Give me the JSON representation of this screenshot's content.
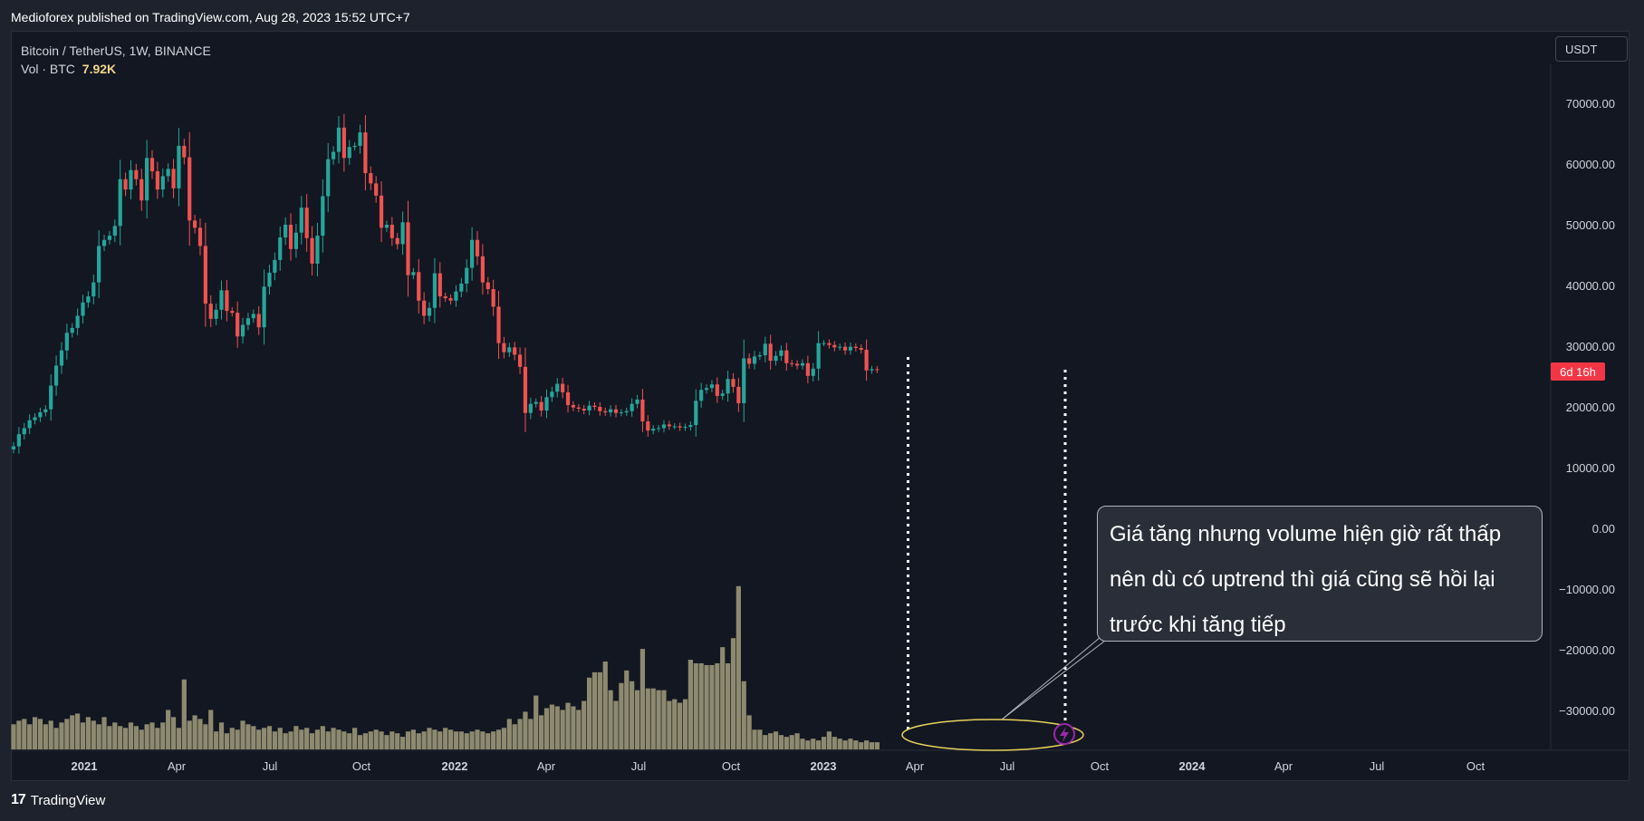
{
  "header": {
    "publisher": "Medioforex published on TradingView.com, Aug 28, 2023 15:52 UTC+7"
  },
  "legend": {
    "symbol": "Bitcoin / TetherUS, 1W, BINANCE",
    "vol_label": "Vol · BTC",
    "vol_value": "7.92K"
  },
  "toolbar": {
    "currency": "USDT"
  },
  "countdown": "6d 16h",
  "annotation": {
    "lines": [
      "Giá tăng nhưng volume hiện giờ rất thấp",
      "nên dù có uptrend thì giá cũng sẽ hồi lại",
      "trước khi tăng tiếp"
    ]
  },
  "footer": {
    "logo_mark": "17",
    "brand": "TradingView"
  },
  "colors": {
    "up": "#26a69a",
    "down": "#ef5350",
    "volume": "#8d8a6f",
    "background": "#131722",
    "frame": "#1e222d",
    "highlight": "#e6d15a",
    "alert": "#9c27b0"
  },
  "icons": {
    "alert": "lightning-icon",
    "logo": "tradingview-logo-icon"
  },
  "chart_data": {
    "type": "candlestick",
    "xlabels": [
      "2021",
      "Apr",
      "Jul",
      "Oct",
      "2022",
      "Apr",
      "Jul",
      "Oct",
      "2023",
      "Apr",
      "Jul",
      "Oct",
      "2024",
      "Apr",
      "Jul",
      "Oct"
    ],
    "yticks": [
      "70000.00",
      "60000.00",
      "50000.00",
      "40000.00",
      "30000.00",
      "20000.00",
      "10000.00",
      "0.00",
      "−10000.00",
      "−20000.00",
      "−30000.00"
    ],
    "ylim": [
      -37000,
      75000
    ],
    "candles_close": [
      13500,
      15500,
      16500,
      17800,
      18300,
      19100,
      19600,
      23500,
      26800,
      29300,
      32200,
      33000,
      35000,
      37200,
      38200,
      40500,
      46500,
      47500,
      48200,
      49800,
      57500,
      55800,
      59000,
      57500,
      54000,
      61000,
      58800,
      55800,
      58000,
      59200,
      56000,
      63000,
      61100,
      50700,
      49500,
      46500,
      37000,
      34500,
      36000,
      39200,
      35800,
      35500,
      31600,
      33500,
      34600,
      35300,
      33100,
      39800,
      42100,
      44200,
      47900,
      50000,
      46000,
      48700,
      52800,
      47800,
      43600,
      48200,
      54700,
      60800,
      62000,
      66000,
      61000,
      62800,
      63000,
      65200,
      58500,
      56800,
      54800,
      49500,
      50000,
      47800,
      46800,
      50400,
      41700,
      42200,
      37500,
      35000,
      36300,
      42000,
      38200,
      37900,
      37500,
      39000,
      40300,
      42900,
      47500,
      44800,
      40500,
      39400,
      36500,
      30500,
      29000,
      29800,
      28600,
      26600,
      19000,
      20500,
      20800,
      19400,
      21600,
      22500,
      23800,
      22400,
      20300,
      19900,
      19700,
      19400,
      20200,
      20000,
      19300,
      19100,
      19600,
      19000,
      19100,
      19300,
      20500,
      21200,
      17600,
      16100,
      16400,
      16500,
      17100,
      16800,
      16800,
      16600,
      16700,
      17000,
      21000,
      22800,
      23100,
      23700,
      21800,
      22200,
      24600,
      23300,
      20600,
      28000,
      27100,
      28300,
      28500,
      30400,
      27600,
      28400,
      29300,
      27200,
      27100,
      26800,
      27200,
      25100,
      26300,
      30500,
      30500,
      30200,
      29800,
      29900,
      29300,
      29900,
      29700,
      29400,
      26000,
      26200,
      26100
    ],
    "volume_pct": [
      14,
      16,
      17,
      14,
      18,
      17,
      14,
      16,
      12,
      15,
      17,
      19,
      20,
      15,
      18,
      16,
      14,
      18,
      13,
      15,
      13,
      12,
      15,
      13,
      11,
      14,
      15,
      12,
      15,
      22,
      18,
      12,
      39,
      16,
      19,
      17,
      14,
      22,
      10,
      15,
      9,
      12,
      11,
      16,
      14,
      13,
      11,
      12,
      13,
      10,
      12,
      9,
      10,
      13,
      11,
      12,
      9,
      11,
      13,
      10,
      12,
      11,
      10,
      9,
      12,
      8,
      9,
      10,
      11,
      10,
      8,
      10,
      9,
      7,
      10,
      11,
      9,
      10,
      12,
      11,
      10,
      12,
      11,
      10,
      10,
      9,
      10,
      11,
      10,
      9,
      10,
      11,
      12,
      17,
      14,
      17,
      21,
      17,
      30,
      19,
      23,
      25,
      24,
      22,
      26,
      24,
      22,
      27,
      40,
      43,
      43,
      49,
      33,
      27,
      37,
      44,
      38,
      33,
      56,
      34,
      34,
      33,
      33,
      27,
      28,
      26,
      28,
      50,
      48,
      48,
      47,
      47,
      48,
      57,
      48,
      62,
      91,
      38,
      19,
      11,
      11,
      8,
      9,
      10,
      8,
      7,
      8,
      9,
      6,
      5,
      6,
      5,
      7,
      10,
      7,
      6,
      5,
      6,
      5,
      4,
      5,
      4,
      4
    ],
    "volume_label": "Vol · BTC",
    "current_volume": "7.92K"
  }
}
